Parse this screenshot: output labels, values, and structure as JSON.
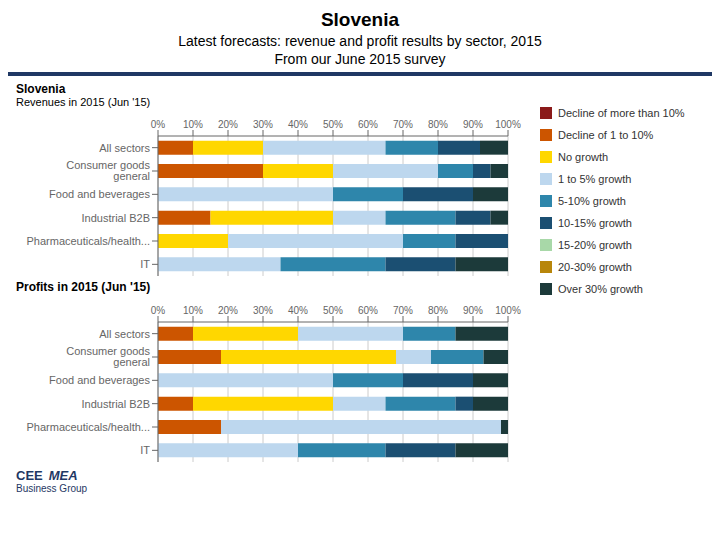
{
  "title": "Slovenia",
  "subtitle": [
    "Latest forecasts: revenue and profit results by sector, 2015",
    "From our June 2015 survey"
  ],
  "annotations": [
    "CEE",
    "MEA",
    "Business Group"
  ],
  "chart_data": [
    {
      "type": "bar",
      "orientation": "horizontal",
      "stacked": true,
      "grid": true,
      "legend": "right",
      "title": "Slovenia",
      "subtitle": "Revenues in 2015 (Jun '15)",
      "categories": [
        "All sectors",
        "Consumer goods general",
        "Food and beverages",
        "Industrial B2B",
        "Pharmaceuticals/health...",
        "IT"
      ],
      "xlim": [
        0,
        100
      ],
      "xticks": [
        {
          "value": 0,
          "label": "0%"
        },
        {
          "value": 10,
          "label": "10%"
        },
        {
          "value": 20,
          "label": "20%"
        },
        {
          "value": 30,
          "label": "30%"
        },
        {
          "value": 40,
          "label": "40%"
        },
        {
          "value": 50,
          "label": "50%"
        },
        {
          "value": 60,
          "label": "60%"
        },
        {
          "value": 70,
          "label": "70%"
        },
        {
          "value": 80,
          "label": "80%"
        },
        {
          "value": 90,
          "label": "90%"
        },
        {
          "value": 100,
          "label": "100%"
        }
      ],
      "series": [
        {
          "name": "Decline of more than 10%",
          "color": "#8B1A1A",
          "values": [
            0,
            0,
            0,
            0,
            0,
            0
          ]
        },
        {
          "name": "Decline of 1 to 10%",
          "color": "#CC5500",
          "values": [
            10,
            30,
            0,
            15,
            0,
            0
          ]
        },
        {
          "name": "No growth",
          "color": "#FFD700",
          "values": [
            20,
            20,
            0,
            35,
            20,
            0
          ]
        },
        {
          "name": "1 to 5% growth",
          "color": "#BDD7EE",
          "values": [
            35,
            30,
            50,
            15,
            50,
            35
          ]
        },
        {
          "name": "5-10% growth",
          "color": "#2E86AB",
          "values": [
            15,
            10,
            20,
            20,
            15,
            30
          ]
        },
        {
          "name": "10-15% growth",
          "color": "#1B4F72",
          "values": [
            12,
            5,
            20,
            10,
            15,
            20
          ]
        },
        {
          "name": "15-20% growth",
          "color": "#A8D8A8",
          "values": [
            0,
            0,
            0,
            0,
            0,
            0
          ]
        },
        {
          "name": "20-30% growth",
          "color": "#B8860B",
          "values": [
            0,
            0,
            0,
            0,
            0,
            0
          ]
        },
        {
          "name": "Over 30% growth",
          "color": "#1C3A3A",
          "values": [
            8,
            5,
            10,
            5,
            0,
            15
          ]
        }
      ]
    },
    {
      "type": "bar",
      "orientation": "horizontal",
      "stacked": true,
      "grid": true,
      "title": "Profits in 2015 (Jun '15)",
      "categories": [
        "All sectors",
        "Consumer goods general",
        "Food and beverages",
        "Industrial B2B",
        "Pharmaceuticals/health...",
        "IT"
      ],
      "xlim": [
        0,
        100
      ],
      "xticks": [
        {
          "value": 0,
          "label": "0%"
        },
        {
          "value": 10,
          "label": "10%"
        },
        {
          "value": 20,
          "label": "20%"
        },
        {
          "value": 30,
          "label": "30%"
        },
        {
          "value": 40,
          "label": "40%"
        },
        {
          "value": 50,
          "label": "50%"
        },
        {
          "value": 60,
          "label": "60%"
        },
        {
          "value": 70,
          "label": "70%"
        },
        {
          "value": 80,
          "label": "80%"
        },
        {
          "value": 90,
          "label": "90%"
        },
        {
          "value": 100,
          "label": "100%"
        }
      ],
      "series": [
        {
          "name": "Decline of more than 10%",
          "color": "#8B1A1A",
          "values": [
            0,
            0,
            0,
            0,
            0,
            0
          ]
        },
        {
          "name": "Decline of 1 to 10%",
          "color": "#CC5500",
          "values": [
            10,
            18,
            0,
            10,
            18,
            0
          ]
        },
        {
          "name": "No growth",
          "color": "#FFD700",
          "values": [
            30,
            50,
            0,
            40,
            0,
            0
          ]
        },
        {
          "name": "1 to 5% growth",
          "color": "#BDD7EE",
          "values": [
            30,
            10,
            50,
            15,
            80,
            40
          ]
        },
        {
          "name": "5-10% growth",
          "color": "#2E86AB",
          "values": [
            15,
            15,
            20,
            20,
            0,
            25
          ]
        },
        {
          "name": "10-15% growth",
          "color": "#1B4F72",
          "values": [
            0,
            0,
            20,
            5,
            0,
            20
          ]
        },
        {
          "name": "15-20% growth",
          "color": "#A8D8A8",
          "values": [
            0,
            0,
            0,
            0,
            0,
            0
          ]
        },
        {
          "name": "20-30% growth",
          "color": "#B8860B",
          "values": [
            0,
            0,
            0,
            0,
            0,
            0
          ]
        },
        {
          "name": "Over 30% growth",
          "color": "#1C3A3A",
          "values": [
            15,
            7,
            10,
            10,
            2,
            15
          ]
        }
      ]
    }
  ]
}
